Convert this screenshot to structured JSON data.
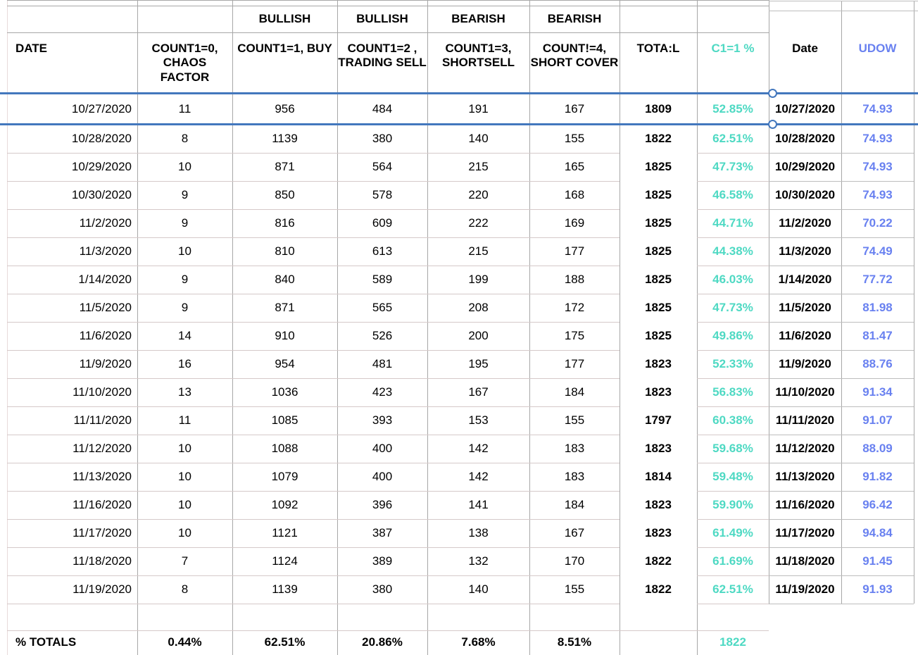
{
  "app": {
    "name": "spreadsheet",
    "description": "trading count table with selected row"
  },
  "colors": {
    "teal": "#4ED9C3",
    "periwinkle": "#6981F0",
    "selection_blue": "#4377BD",
    "grid_vertical": "#A7A7A7",
    "grid_horizontal_left": "#D5C9C9",
    "grid_horizontal_right": "#BDBDBD",
    "table_left_edge": "#E8DADA",
    "text": "#000000"
  },
  "table": {
    "group_headers": [
      {
        "label": "BULLISH",
        "col": 2
      },
      {
        "label": "BULLISH",
        "col": 3
      },
      {
        "label": "BEARISH",
        "col": 4
      },
      {
        "label": "BEARISH",
        "col": 5
      }
    ],
    "columns": [
      {
        "key": "date",
        "label": "DATE",
        "color": "#000000",
        "align": "left"
      },
      {
        "key": "count0",
        "label": "COUNT1=0, CHAOS FACTOR",
        "color": "#000000",
        "align": "center"
      },
      {
        "key": "count1",
        "label": "COUNT1=1, BUY",
        "color": "#000000",
        "align": "center"
      },
      {
        "key": "count2",
        "label": "COUNT1=2 , TRADING SELL",
        "color": "#000000",
        "align": "center"
      },
      {
        "key": "count3",
        "label": "COUNT1=3, SHORTSELL",
        "color": "#000000",
        "align": "center"
      },
      {
        "key": "count4",
        "label": "COUNT!=4, SHORT COVER",
        "color": "#000000",
        "align": "center"
      },
      {
        "key": "total",
        "label": "TOTA:L",
        "color": "#000000",
        "align": "center"
      },
      {
        "key": "c1pct",
        "label": "C1=1 %",
        "color": "#4ED9C3",
        "align": "center"
      },
      {
        "key": "date2",
        "label": "Date",
        "color": "#000000",
        "align": "center"
      },
      {
        "key": "udow",
        "label": "UDOW",
        "color": "#6981F0",
        "align": "center"
      }
    ],
    "rows": [
      [
        "10/27/2020",
        "11",
        "956",
        "484",
        "191",
        "167",
        "1809",
        "52.85%",
        "10/27/2020",
        "74.93"
      ],
      [
        "10/28/2020",
        "8",
        "1139",
        "380",
        "140",
        "155",
        "1822",
        "62.51%",
        "10/28/2020",
        "74.93"
      ],
      [
        "10/29/2020",
        "10",
        "871",
        "564",
        "215",
        "165",
        "1825",
        "47.73%",
        "10/29/2020",
        "74.93"
      ],
      [
        "10/30/2020",
        "9",
        "850",
        "578",
        "220",
        "168",
        "1825",
        "46.58%",
        "10/30/2020",
        "74.93"
      ],
      [
        "11/2/2020",
        "9",
        "816",
        "609",
        "222",
        "169",
        "1825",
        "44.71%",
        "11/2/2020",
        "70.22"
      ],
      [
        "11/3/2020",
        "10",
        "810",
        "613",
        "215",
        "177",
        "1825",
        "44.38%",
        "11/3/2020",
        "74.49"
      ],
      [
        "1/14/2020",
        "9",
        "840",
        "589",
        "199",
        "188",
        "1825",
        "46.03%",
        "1/14/2020",
        "77.72"
      ],
      [
        "11/5/2020",
        "9",
        "871",
        "565",
        "208",
        "172",
        "1825",
        "47.73%",
        "11/5/2020",
        "81.98"
      ],
      [
        "11/6/2020",
        "14",
        "910",
        "526",
        "200",
        "175",
        "1825",
        "49.86%",
        "11/6/2020",
        "81.47"
      ],
      [
        "11/9/2020",
        "16",
        "954",
        "481",
        "195",
        "177",
        "1823",
        "52.33%",
        "11/9/2020",
        "88.76"
      ],
      [
        "11/10/2020",
        "13",
        "1036",
        "423",
        "167",
        "184",
        "1823",
        "56.83%",
        "11/10/2020",
        "91.34"
      ],
      [
        "11/11/2020",
        "11",
        "1085",
        "393",
        "153",
        "155",
        "1797",
        "60.38%",
        "11/11/2020",
        "91.07"
      ],
      [
        "11/12/2020",
        "10",
        "1088",
        "400",
        "142",
        "183",
        "1823",
        "59.68%",
        "11/12/2020",
        "88.09"
      ],
      [
        "11/13/2020",
        "10",
        "1079",
        "400",
        "142",
        "183",
        "1814",
        "59.48%",
        "11/13/2020",
        "91.82"
      ],
      [
        "11/16/2020",
        "10",
        "1092",
        "396",
        "141",
        "184",
        "1823",
        "59.90%",
        "11/16/2020",
        "96.42"
      ],
      [
        "11/17/2020",
        "10",
        "1121",
        "387",
        "138",
        "167",
        "1823",
        "61.49%",
        "11/17/2020",
        "94.84"
      ],
      [
        "11/18/2020",
        "7",
        "1124",
        "389",
        "132",
        "170",
        "1822",
        "61.69%",
        "11/18/2020",
        "91.45"
      ],
      [
        "11/19/2020",
        "8",
        "1139",
        "380",
        "140",
        "155",
        "1822",
        "62.51%",
        "11/19/2020",
        "91.93"
      ]
    ],
    "totals_row": {
      "label": "% TOTALS",
      "values": [
        "0.44%",
        "62.51%",
        "20.86%",
        "7.68%",
        "8.51%",
        "",
        "1822",
        "",
        ""
      ]
    },
    "selection": {
      "selected_row": "10/27/2020",
      "handles": 2
    }
  }
}
